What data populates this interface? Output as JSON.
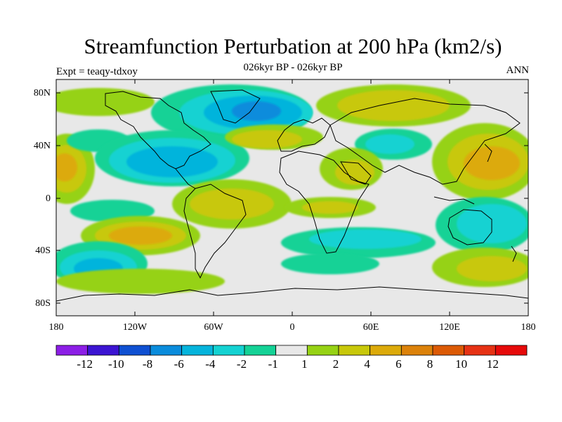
{
  "title": "Streamfunction Perturbation at 200 hPa (km2/s)",
  "subtitle": "026kyr BP - 026kyr BP",
  "left_label": "Expt = teaqy-tdxoy",
  "right_label": "ANN",
  "lat_ticks": [
    "80N",
    "40N",
    "0",
    "40S",
    "80S"
  ],
  "lon_ticks": [
    "180",
    "120W",
    "60W",
    "0",
    "60E",
    "120E",
    "180"
  ],
  "colorbar": {
    "colors": [
      "#8c1ee6",
      "#3c14d2",
      "#0f50d2",
      "#0a8cdc",
      "#05b4dc",
      "#14d2d2",
      "#14d296",
      "#e8e8e8",
      "#96d214",
      "#c8c80a",
      "#dcaa0a",
      "#dc820a",
      "#dc5a05",
      "#e63214",
      "#e60a0a"
    ],
    "labels": [
      "-12",
      "-10",
      "-8",
      "-6",
      "-4",
      "-2",
      "-1",
      "1",
      "2",
      "4",
      "6",
      "8",
      "10",
      "12"
    ]
  },
  "field_colors": {
    "neutral": "#e8e8e8",
    "pos2": "#96d214",
    "pos4": "#c8c80a",
    "pos6": "#dcaa0a",
    "pos8": "#dc820a",
    "neg1": "#14d296",
    "neg2": "#14d2d2",
    "neg4": "#05b4dc",
    "neg6": "#0a8cdc"
  }
}
